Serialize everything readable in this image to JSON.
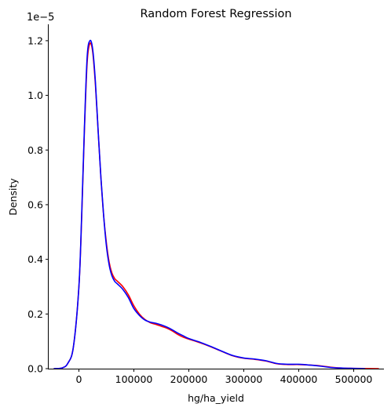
{
  "chart_data": {
    "type": "line",
    "title": "Random Forest Regression",
    "xlabel": "hg/ha_yield",
    "ylabel": "Density",
    "y_offset_text": "1e−5",
    "xlim": [
      -55000,
      555000
    ],
    "ylim": [
      0,
      1.26
    ],
    "x_ticks": [
      0,
      100000,
      200000,
      300000,
      400000,
      500000
    ],
    "x_tick_labels": [
      "0",
      "100000",
      "200000",
      "300000",
      "400000",
      "500000"
    ],
    "y_ticks": [
      0.0,
      0.2,
      0.4,
      0.6,
      0.8,
      1.0,
      1.2
    ],
    "y_tick_labels": [
      "0.0",
      "0.2",
      "0.4",
      "0.6",
      "0.8",
      "1.0",
      "1.2"
    ],
    "grid": false,
    "series": [
      {
        "color": "#ff0000",
        "x": [
          -45000,
          -30000,
          -20000,
          -10000,
          0,
          5000,
          10000,
          15000,
          20000,
          25000,
          30000,
          35000,
          40000,
          45000,
          50000,
          55000,
          60000,
          65000,
          70000,
          80000,
          90000,
          100000,
          110000,
          120000,
          130000,
          140000,
          150000,
          160000,
          170000,
          180000,
          190000,
          200000,
          220000,
          240000,
          260000,
          280000,
          300000,
          320000,
          340000,
          360000,
          380000,
          400000,
          420000,
          440000,
          460000,
          480000,
          500000,
          520000,
          545000
        ],
        "y": [
          0.0,
          0.003,
          0.02,
          0.08,
          0.3,
          0.55,
          0.87,
          1.12,
          1.19,
          1.16,
          1.04,
          0.87,
          0.7,
          0.56,
          0.46,
          0.39,
          0.35,
          0.33,
          0.32,
          0.3,
          0.27,
          0.23,
          0.2,
          0.18,
          0.168,
          0.162,
          0.155,
          0.148,
          0.138,
          0.125,
          0.115,
          0.108,
          0.095,
          0.08,
          0.063,
          0.047,
          0.038,
          0.034,
          0.028,
          0.018,
          0.015,
          0.015,
          0.013,
          0.01,
          0.005,
          0.002,
          0.001,
          0.0005,
          0.0
        ]
      },
      {
        "color": "#0000ff",
        "x": [
          -45000,
          -30000,
          -20000,
          -10000,
          0,
          5000,
          10000,
          15000,
          20000,
          25000,
          30000,
          35000,
          40000,
          45000,
          50000,
          55000,
          60000,
          65000,
          70000,
          80000,
          90000,
          100000,
          110000,
          120000,
          130000,
          140000,
          150000,
          160000,
          170000,
          180000,
          190000,
          200000,
          220000,
          240000,
          260000,
          280000,
          300000,
          320000,
          340000,
          360000,
          380000,
          400000,
          420000,
          440000,
          460000,
          480000,
          500000,
          520000
        ],
        "y": [
          0.0,
          0.003,
          0.02,
          0.08,
          0.3,
          0.56,
          0.88,
          1.14,
          1.2,
          1.17,
          1.05,
          0.87,
          0.7,
          0.56,
          0.45,
          0.38,
          0.34,
          0.32,
          0.31,
          0.29,
          0.26,
          0.22,
          0.195,
          0.178,
          0.17,
          0.166,
          0.16,
          0.152,
          0.142,
          0.13,
          0.12,
          0.11,
          0.097,
          0.081,
          0.064,
          0.048,
          0.039,
          0.035,
          0.029,
          0.019,
          0.016,
          0.016,
          0.013,
          0.009,
          0.004,
          0.002,
          0.001,
          0.0
        ]
      }
    ]
  }
}
